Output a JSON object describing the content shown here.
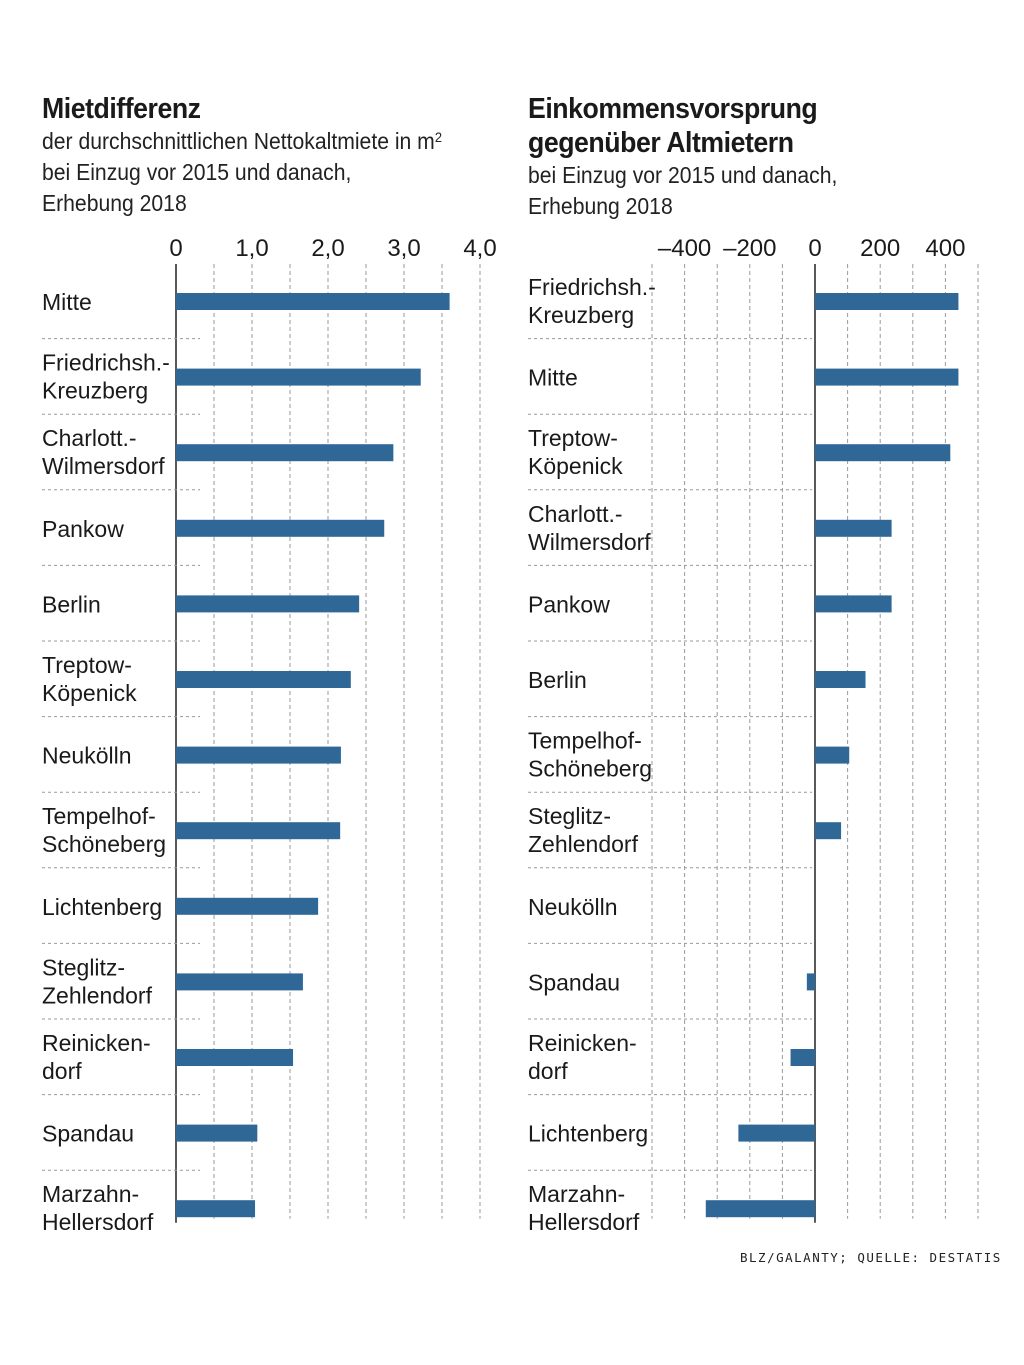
{
  "source": "BLZ/GALANTY; QUELLE: DESTATIS",
  "colors": {
    "bar": "#2f6797",
    "grid": "#9a9a9a",
    "text": "#1a1a1a"
  },
  "chart_data": [
    {
      "type": "bar",
      "orientation": "horizontal",
      "title": "Mietdifferenz",
      "subtitle_prefix": "der durchschnittlichen Nettokaltmiete in m",
      "subtitle_sup": "2",
      "subtitle_rest": "bei Einzug vor 2015 und danach,\nErhebung 2018",
      "categories": [
        "Mitte",
        "Friedrichsh.-\nKreuzberg",
        "Charlott.-\nWilmersdorf",
        "Pankow",
        "Berlin",
        "Treptow-\nKöpenick",
        "Neukölln",
        "Tempelhof-\nSchöneberg",
        "Lichtenberg",
        "Steglitz-\nZehlendorf",
        "Reinicken-\ndorf",
        "Spandau",
        "Marzahn-\nHellersdorf"
      ],
      "values": [
        3.6,
        3.22,
        2.86,
        2.74,
        2.41,
        2.3,
        2.17,
        2.16,
        1.87,
        1.67,
        1.54,
        1.07,
        1.04
      ],
      "xlim": [
        0,
        4.0
      ],
      "ticks": [
        0,
        1.0,
        2.0,
        3.0,
        4.0
      ],
      "tick_labels": [
        "0",
        "1,0",
        "2,0",
        "3,0",
        "4,0"
      ],
      "grid": true
    },
    {
      "type": "bar",
      "orientation": "horizontal",
      "title": "Einkommensvorsprung\ngegenüber Altmietern",
      "subtitle_rest": "bei Einzug vor 2015 und danach,\nErhebung 2018",
      "categories": [
        "Friedrichsh.-\nKreuzberg",
        "Mitte",
        "Treptow-\nKöpenick",
        "Charlott.-\nWilmersdorf",
        "Pankow",
        "Berlin",
        "Tempelhof-\nSchöneberg",
        "Steglitz-\nZehlendorf",
        "Neukölln",
        "Spandau",
        "Reinicken-\ndorf",
        "Lichtenberg",
        "Marzahn-\nHellersdorf"
      ],
      "values": [
        440,
        440,
        415,
        235,
        235,
        155,
        105,
        80,
        0,
        -25,
        -75,
        -235,
        -335
      ],
      "xlim": [
        -500,
        500
      ],
      "ticks": [
        -400,
        -200,
        0,
        200,
        400
      ],
      "tick_labels": [
        "–400",
        "–200",
        "0",
        "200",
        "400"
      ],
      "grid": true
    }
  ]
}
